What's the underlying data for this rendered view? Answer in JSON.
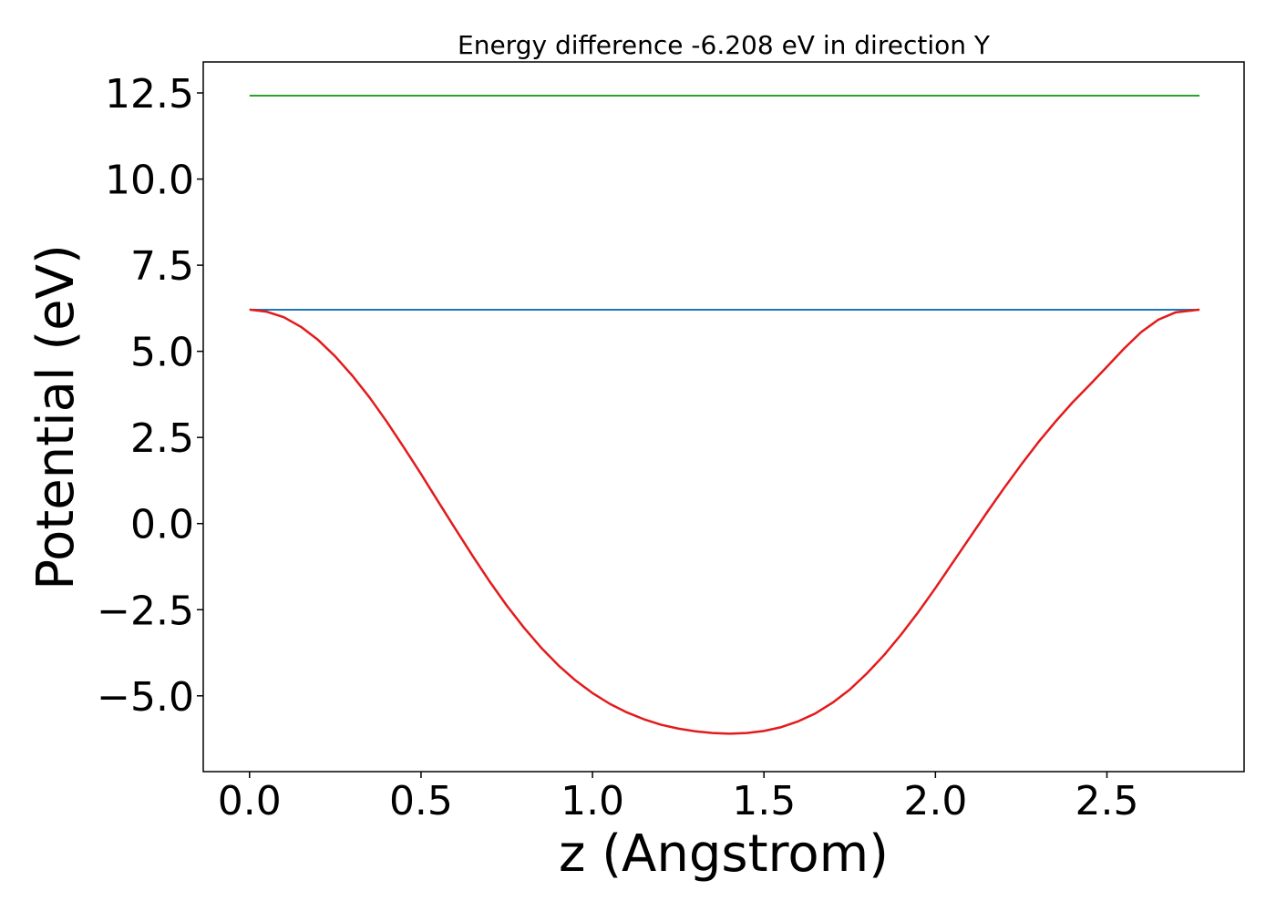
{
  "chart_data": {
    "type": "line",
    "title": "Energy difference -6.208 eV in direction Y",
    "xlabel": "z (Angstrom)",
    "ylabel": "Potential (eV)",
    "xlim": [
      -0.135,
      2.9
    ],
    "ylim": [
      -7.2,
      13.4
    ],
    "xticks": [
      0.0,
      0.5,
      1.0,
      1.5,
      2.0,
      2.5
    ],
    "xtick_labels": [
      "0.0",
      "0.5",
      "1.0",
      "1.5",
      "2.0",
      "2.5"
    ],
    "yticks": [
      -5.0,
      -2.5,
      0.0,
      2.5,
      5.0,
      7.5,
      10.0,
      12.5
    ],
    "ytick_labels": [
      "−5.0",
      "−2.5",
      "0.0",
      "2.5",
      "5.0",
      "7.5",
      "10.0",
      "12.5"
    ],
    "grid": false,
    "series": [
      {
        "kind": "hline",
        "color": "#2ca02c",
        "y": 12.42,
        "x_range": [
          0.0,
          2.77
        ]
      },
      {
        "kind": "hline",
        "color": "#1f77b4",
        "y": 6.208,
        "x_range": [
          0.0,
          2.77
        ]
      },
      {
        "kind": "curve",
        "color": "#e31a1c",
        "x": [
          0.0,
          0.05,
          0.1,
          0.15,
          0.2,
          0.25,
          0.3,
          0.35,
          0.4,
          0.45,
          0.5,
          0.55,
          0.6,
          0.65,
          0.7,
          0.75,
          0.8,
          0.85,
          0.9,
          0.95,
          1.0,
          1.05,
          1.1,
          1.15,
          1.2,
          1.25,
          1.3,
          1.35,
          1.4,
          1.45,
          1.5,
          1.55,
          1.6,
          1.65,
          1.7,
          1.75,
          1.8,
          1.85,
          1.9,
          1.95,
          2.0,
          2.05,
          2.1,
          2.15,
          2.2,
          2.25,
          2.3,
          2.35,
          2.4,
          2.45,
          2.5,
          2.55,
          2.6,
          2.65,
          2.7,
          2.77
        ],
        "y": [
          6.21,
          6.15,
          5.99,
          5.71,
          5.33,
          4.85,
          4.29,
          3.66,
          2.96,
          2.21,
          1.44,
          0.64,
          -0.15,
          -0.93,
          -1.68,
          -2.38,
          -3.02,
          -3.6,
          -4.11,
          -4.55,
          -4.92,
          -5.23,
          -5.48,
          -5.68,
          -5.84,
          -5.95,
          -6.03,
          -6.08,
          -6.1,
          -6.08,
          -6.02,
          -5.91,
          -5.74,
          -5.51,
          -5.2,
          -4.82,
          -4.35,
          -3.82,
          -3.22,
          -2.57,
          -1.87,
          -1.14,
          -0.41,
          0.32,
          1.03,
          1.71,
          2.36,
          2.96,
          3.52,
          4.03,
          4.55,
          5.08,
          5.56,
          5.92,
          6.13,
          6.21
        ]
      }
    ]
  }
}
